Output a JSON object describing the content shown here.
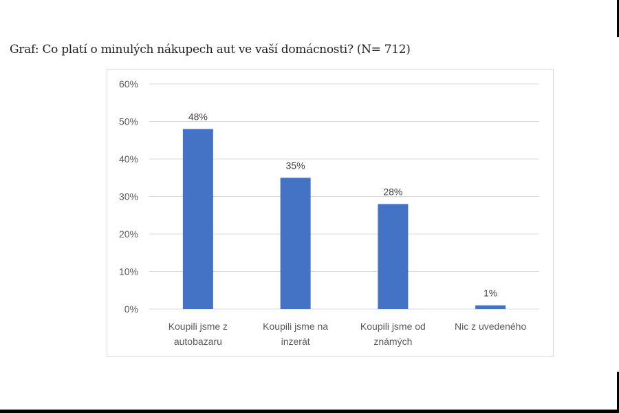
{
  "page": {
    "title": "Graf: Co platí o minulých nákupech aut ve vaší domácnosti? (N= 712)"
  },
  "colors": {
    "bar": "#4472c4",
    "grid": "#d9d9d9",
    "axis_text": "#595959"
  },
  "chart_data": {
    "type": "bar",
    "title": "Graf: Co platí o minulých nákupech aut ve vaší domácnosti? (N= 712)",
    "xlabel": "",
    "ylabel": "",
    "categories": [
      [
        "Koupili jsme z",
        "autobazaru"
      ],
      [
        "Koupili jsme na",
        "inzerát"
      ],
      [
        "Koupili jsme od",
        "známých"
      ],
      [
        "Nic z uvedeného"
      ]
    ],
    "category_labels": [
      "Koupili jsme z autobazaru",
      "Koupili jsme na inzerát",
      "Koupili jsme od známých",
      "Nic z uvedeného"
    ],
    "values": [
      48,
      35,
      28,
      1
    ],
    "data_labels": [
      "48%",
      "35%",
      "28%",
      "1%"
    ],
    "ylim": [
      0,
      60
    ],
    "yticks": [
      0,
      10,
      20,
      30,
      40,
      50,
      60
    ],
    "ytick_labels": [
      "0%",
      "10%",
      "20%",
      "30%",
      "40%",
      "50%",
      "60%"
    ],
    "grid": true,
    "legend": null
  }
}
